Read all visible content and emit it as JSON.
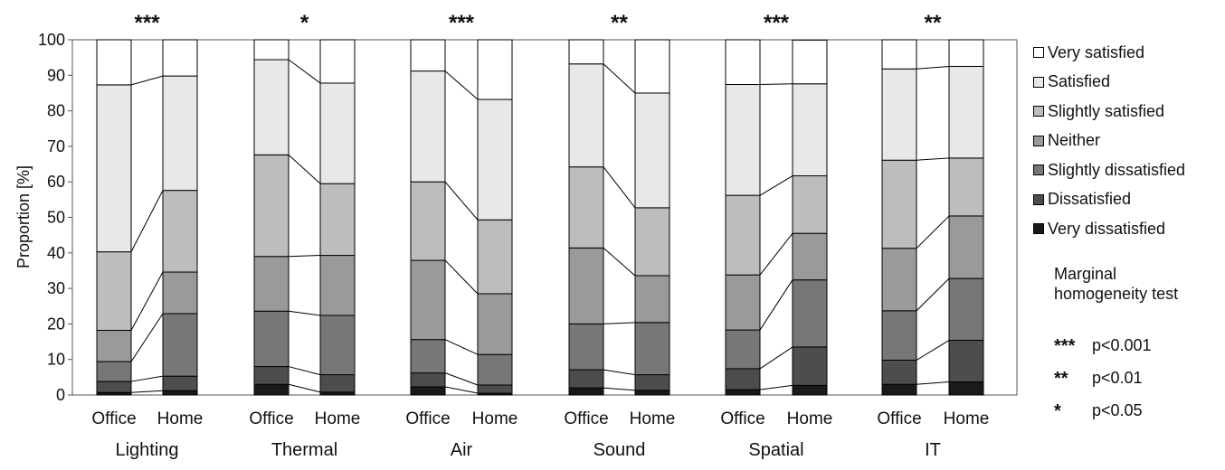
{
  "chart_data": {
    "type": "bar",
    "stacked": true,
    "normalized": true,
    "ylabel": "Proportion [%]",
    "ylim": [
      0,
      100
    ],
    "yticks": [
      0,
      10,
      20,
      30,
      40,
      50,
      60,
      70,
      80,
      90,
      100
    ],
    "grid": false,
    "legend_position": "right",
    "groups": [
      {
        "name": "Lighting",
        "significance": "***"
      },
      {
        "name": "Thermal",
        "significance": "*"
      },
      {
        "name": "Air",
        "significance": "***"
      },
      {
        "name": "Sound",
        "significance": "**"
      },
      {
        "name": "Spatial",
        "significance": "***"
      },
      {
        "name": "IT",
        "significance": "**"
      }
    ],
    "subcategories": [
      "Office",
      "Home"
    ],
    "series": [
      {
        "name": "Very dissatisfied",
        "color": "#1a1a1a",
        "values": [
          [
            0.7,
            1.2
          ],
          [
            3.0,
            0.8
          ],
          [
            2.3,
            0.5
          ],
          [
            2.0,
            1.3
          ],
          [
            1.5,
            2.7
          ],
          [
            3.0,
            3.7
          ]
        ]
      },
      {
        "name": "Dissatisfied",
        "color": "#4d4d4d",
        "values": [
          [
            3.1,
            4.1
          ],
          [
            5.0,
            4.9
          ],
          [
            3.9,
            2.3
          ],
          [
            5.1,
            4.4
          ],
          [
            5.9,
            10.8
          ],
          [
            6.8,
            11.7
          ]
        ]
      },
      {
        "name": "Slightly dissatisfied",
        "color": "#777777",
        "values": [
          [
            5.6,
            17.6
          ],
          [
            15.6,
            16.7
          ],
          [
            9.4,
            8.6
          ],
          [
            12.9,
            14.7
          ],
          [
            10.9,
            18.9
          ],
          [
            13.9,
            17.4
          ]
        ]
      },
      {
        "name": "Neither",
        "color": "#9a9a9a",
        "values": [
          [
            8.8,
            11.7
          ],
          [
            15.4,
            16.9
          ],
          [
            22.3,
            17.1
          ],
          [
            21.4,
            13.2
          ],
          [
            15.5,
            13.1
          ],
          [
            17.6,
            17.6
          ]
        ]
      },
      {
        "name": "Slightly satisfied",
        "color": "#bdbdbd",
        "values": [
          [
            22.1,
            23.0
          ],
          [
            28.6,
            20.2
          ],
          [
            22.1,
            20.8
          ],
          [
            22.8,
            19.1
          ],
          [
            22.4,
            16.2
          ],
          [
            24.8,
            16.3
          ]
        ]
      },
      {
        "name": "Satisfied",
        "color": "#e8e8e8",
        "values": [
          [
            47.0,
            32.2
          ],
          [
            26.8,
            28.3
          ],
          [
            31.2,
            33.9
          ],
          [
            29.0,
            32.3
          ],
          [
            31.2,
            25.9
          ],
          [
            25.7,
            25.8
          ]
        ]
      },
      {
        "name": "Very satisfied",
        "color": "#ffffff",
        "values": [
          [
            12.7,
            10.2
          ],
          [
            5.6,
            12.2
          ],
          [
            8.8,
            16.8
          ],
          [
            6.8,
            15.0
          ],
          [
            12.6,
            12.3
          ],
          [
            8.2,
            7.5
          ]
        ]
      }
    ],
    "legend_order": [
      "Very satisfied",
      "Satisfied",
      "Slightly satisfied",
      "Neither",
      "Slightly dissatisfied",
      "Dissatisfied",
      "Very dissatisfied"
    ]
  },
  "test_note": "Marginal homogeneity test",
  "significance_levels": [
    {
      "stars": "***",
      "label": "p<0.001"
    },
    {
      "stars": "**",
      "label": "p<0.01"
    },
    {
      "stars": "*",
      "label": "p<0.05"
    }
  ]
}
